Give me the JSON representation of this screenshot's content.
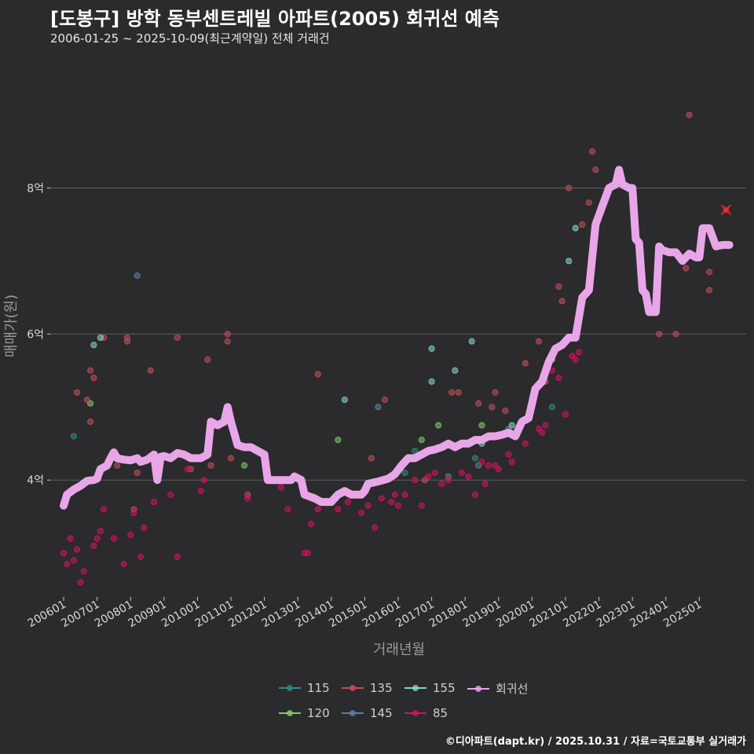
{
  "title": "[도봉구] 방학 동부센트레빌 아파트(2005) 회귀선 예측",
  "subtitle": "2006-01-25 ~ 2025-10-09(최근계약일) 전체 거래건",
  "footer": "©디아파트(dapt.kr) / 2025.10.31 / 자료=국토교통부 실거래가",
  "colors": {
    "background": "#2b2a2c",
    "grid": "#5e5d60",
    "regression": "#e8a6e8",
    "t115": "#2e8b87",
    "t120": "#7ccf6a",
    "t135": "#c0505a",
    "t145": "#5f7fa6",
    "t155": "#86d6cf",
    "t85": "#d6135f",
    "latest_marker": "#ff2a2a"
  },
  "chart_data": {
    "type": "scatter",
    "title": "[도봉구] 방학 동부센트레빌 아파트(2005) 회귀선 예측",
    "xlabel": "거래년월",
    "ylabel": "매매가(원)",
    "xlim": [
      2005.6,
      2026.4
    ],
    "ylim": [
      2.4,
      9.8
    ],
    "y_ticks": [
      4,
      6,
      8
    ],
    "y_tick_labels": [
      "4억",
      "6억",
      "8억"
    ],
    "x_ticks": [
      2006,
      2007,
      2008,
      2009,
      2010,
      2011,
      2012,
      2013,
      2014,
      2015,
      2016,
      2017,
      2018,
      2019,
      2020,
      2021,
      2022,
      2023,
      2024,
      2025
    ],
    "x_tick_labels": [
      "200601",
      "200701",
      "200801",
      "200901",
      "201001",
      "201101",
      "201201",
      "201301",
      "201401",
      "201501",
      "201601",
      "201701",
      "201801",
      "201901",
      "202001",
      "202101",
      "202201",
      "202301",
      "202401",
      "202501"
    ],
    "legend": [
      "115",
      "120",
      "135",
      "145",
      "155",
      "85",
      "회귀선"
    ],
    "legend_keys": [
      "t115",
      "t120",
      "t135",
      "t145",
      "t155",
      "t85",
      "regression"
    ],
    "legend_position": "bottom",
    "series": [
      {
        "name": "115",
        "key": "t115",
        "points": [
          [
            2006.3,
            4.6
          ],
          [
            2016.5,
            4.4
          ],
          [
            2016.2,
            4.1
          ],
          [
            2020.6,
            5.0
          ],
          [
            2018.3,
            4.3
          ]
        ]
      },
      {
        "name": "120",
        "key": "t120",
        "points": [
          [
            2006.8,
            5.05
          ],
          [
            2011.4,
            4.2
          ],
          [
            2014.2,
            4.55
          ],
          [
            2016.7,
            4.55
          ],
          [
            2017.2,
            4.75
          ],
          [
            2018.5,
            4.75
          ],
          [
            2020.4,
            5.5
          ],
          [
            2020.6,
            5.65
          ]
        ]
      },
      {
        "name": "135",
        "key": "t135",
        "points": [
          [
            2006.4,
            5.2
          ],
          [
            2006.7,
            5.1
          ],
          [
            2006.9,
            5.4
          ],
          [
            2006.8,
            5.5
          ],
          [
            2006.8,
            4.8
          ],
          [
            2007.2,
            5.95
          ],
          [
            2007.6,
            4.2
          ],
          [
            2007.9,
            5.9
          ],
          [
            2007.9,
            5.95
          ],
          [
            2008.1,
            3.6
          ],
          [
            2008.2,
            4.1
          ],
          [
            2008.6,
            5.5
          ],
          [
            2009.4,
            5.95
          ],
          [
            2009.8,
            4.15
          ],
          [
            2010.3,
            5.65
          ],
          [
            2010.4,
            4.2
          ],
          [
            2010.9,
            6.0
          ],
          [
            2010.9,
            5.9
          ],
          [
            2011.0,
            4.3
          ],
          [
            2011.5,
            3.8
          ],
          [
            2013.6,
            5.45
          ],
          [
            2015.2,
            4.3
          ],
          [
            2015.6,
            5.1
          ],
          [
            2016.8,
            4.0
          ],
          [
            2017.6,
            5.2
          ],
          [
            2017.8,
            5.2
          ],
          [
            2018.4,
            5.05
          ],
          [
            2018.8,
            5.0
          ],
          [
            2018.9,
            5.2
          ],
          [
            2019.2,
            4.95
          ],
          [
            2019.8,
            5.6
          ],
          [
            2020.2,
            5.9
          ],
          [
            2021.5,
            7.5
          ],
          [
            2021.7,
            7.8
          ],
          [
            2020.8,
            6.65
          ],
          [
            2020.9,
            6.45
          ],
          [
            2021.1,
            8.0
          ],
          [
            2021.8,
            8.5
          ],
          [
            2021.9,
            8.25
          ],
          [
            2023.8,
            6.0
          ],
          [
            2024.3,
            6.0
          ],
          [
            2024.7,
            9.0
          ],
          [
            2025.3,
            6.85
          ],
          [
            2025.3,
            6.6
          ],
          [
            2024.6,
            6.9
          ],
          [
            2020.4,
            5.35
          ]
        ]
      },
      {
        "name": "145",
        "key": "t145",
        "points": [
          [
            2008.2,
            6.8
          ],
          [
            2015.4,
            5.0
          ],
          [
            2017.5,
            4.05
          ],
          [
            2018.4,
            4.2
          ],
          [
            2019.3,
            4.7
          ]
        ]
      },
      {
        "name": "155",
        "key": "t155",
        "points": [
          [
            2006.9,
            5.85
          ],
          [
            2007.1,
            5.95
          ],
          [
            2014.4,
            5.1
          ],
          [
            2017.0,
            5.35
          ],
          [
            2017.0,
            5.8
          ],
          [
            2017.7,
            5.5
          ],
          [
            2018.2,
            5.9
          ],
          [
            2018.5,
            4.5
          ],
          [
            2019.4,
            4.75
          ],
          [
            2021.1,
            7.0
          ],
          [
            2021.3,
            7.45
          ]
        ]
      },
      {
        "name": "85",
        "key": "t85",
        "points": [
          [
            2006.0,
            3.0
          ],
          [
            2006.1,
            2.85
          ],
          [
            2006.2,
            3.2
          ],
          [
            2006.3,
            2.9
          ],
          [
            2006.4,
            3.05
          ],
          [
            2006.5,
            2.6
          ],
          [
            2006.6,
            2.75
          ],
          [
            2006.9,
            3.1
          ],
          [
            2007.0,
            3.2
          ],
          [
            2007.1,
            3.3
          ],
          [
            2007.2,
            3.6
          ],
          [
            2007.5,
            3.2
          ],
          [
            2007.8,
            2.85
          ],
          [
            2008.0,
            3.25
          ],
          [
            2008.1,
            3.55
          ],
          [
            2008.3,
            2.95
          ],
          [
            2008.4,
            3.35
          ],
          [
            2008.7,
            3.7
          ],
          [
            2009.2,
            3.8
          ],
          [
            2009.4,
            2.95
          ],
          [
            2009.7,
            4.15
          ],
          [
            2010.1,
            3.85
          ],
          [
            2010.2,
            4.0
          ],
          [
            2011.5,
            3.75
          ],
          [
            2012.5,
            3.9
          ],
          [
            2012.7,
            3.6
          ],
          [
            2013.2,
            3.0
          ],
          [
            2013.3,
            3.0
          ],
          [
            2013.4,
            3.4
          ],
          [
            2013.6,
            3.6
          ],
          [
            2014.2,
            3.6
          ],
          [
            2014.5,
            3.7
          ],
          [
            2014.7,
            3.8
          ],
          [
            2014.9,
            3.55
          ],
          [
            2015.1,
            3.65
          ],
          [
            2015.3,
            3.35
          ],
          [
            2015.5,
            3.75
          ],
          [
            2015.8,
            3.7
          ],
          [
            2015.9,
            3.8
          ],
          [
            2016.0,
            3.65
          ],
          [
            2016.2,
            3.8
          ],
          [
            2016.5,
            4.0
          ],
          [
            2016.7,
            3.65
          ],
          [
            2016.9,
            4.05
          ],
          [
            2017.1,
            4.1
          ],
          [
            2017.3,
            3.95
          ],
          [
            2017.5,
            4.0
          ],
          [
            2017.9,
            4.1
          ],
          [
            2018.1,
            4.05
          ],
          [
            2018.3,
            3.8
          ],
          [
            2018.5,
            4.25
          ],
          [
            2018.6,
            3.95
          ],
          [
            2018.7,
            4.2
          ],
          [
            2018.9,
            4.2
          ],
          [
            2019.0,
            4.15
          ],
          [
            2019.3,
            4.35
          ],
          [
            2019.4,
            4.25
          ],
          [
            2019.8,
            4.5
          ],
          [
            2020.0,
            5.0
          ],
          [
            2020.2,
            4.7
          ],
          [
            2020.3,
            4.65
          ],
          [
            2020.4,
            4.75
          ],
          [
            2020.6,
            5.5
          ],
          [
            2020.8,
            5.4
          ],
          [
            2021.0,
            4.9
          ],
          [
            2021.2,
            5.7
          ],
          [
            2021.3,
            5.65
          ],
          [
            2021.4,
            5.75
          ]
        ]
      }
    ],
    "regression": [
      [
        2006.0,
        3.65
      ],
      [
        2006.1,
        3.8
      ],
      [
        2006.3,
        3.87
      ],
      [
        2006.5,
        3.92
      ],
      [
        2006.7,
        3.99
      ],
      [
        2006.9,
        4.0
      ],
      [
        2007.0,
        4.02
      ],
      [
        2007.1,
        4.15
      ],
      [
        2007.3,
        4.2
      ],
      [
        2007.4,
        4.3
      ],
      [
        2007.5,
        4.38
      ],
      [
        2007.6,
        4.3
      ],
      [
        2007.8,
        4.28
      ],
      [
        2008.0,
        4.27
      ],
      [
        2008.2,
        4.3
      ],
      [
        2008.3,
        4.25
      ],
      [
        2008.5,
        4.28
      ],
      [
        2008.7,
        4.35
      ],
      [
        2008.8,
        4.0
      ],
      [
        2008.9,
        4.32
      ],
      [
        2009.0,
        4.33
      ],
      [
        2009.2,
        4.3
      ],
      [
        2009.4,
        4.37
      ],
      [
        2009.6,
        4.35
      ],
      [
        2009.8,
        4.3
      ],
      [
        2010.1,
        4.3
      ],
      [
        2010.3,
        4.35
      ],
      [
        2010.4,
        4.8
      ],
      [
        2010.6,
        4.75
      ],
      [
        2010.8,
        4.8
      ],
      [
        2010.9,
        5.0
      ],
      [
        2011.0,
        4.8
      ],
      [
        2011.2,
        4.48
      ],
      [
        2011.4,
        4.45
      ],
      [
        2011.6,
        4.45
      ],
      [
        2011.8,
        4.4
      ],
      [
        2012.0,
        4.35
      ],
      [
        2012.1,
        4.0
      ],
      [
        2012.3,
        4.0
      ],
      [
        2012.6,
        4.0
      ],
      [
        2012.8,
        4.0
      ],
      [
        2012.9,
        4.05
      ],
      [
        2013.1,
        4.0
      ],
      [
        2013.2,
        3.8
      ],
      [
        2013.5,
        3.75
      ],
      [
        2013.7,
        3.7
      ],
      [
        2014.0,
        3.7
      ],
      [
        2014.2,
        3.8
      ],
      [
        2014.4,
        3.85
      ],
      [
        2014.6,
        3.8
      ],
      [
        2014.9,
        3.8
      ],
      [
        2015.0,
        3.85
      ],
      [
        2015.1,
        3.95
      ],
      [
        2015.4,
        3.98
      ],
      [
        2015.7,
        4.02
      ],
      [
        2015.9,
        4.08
      ],
      [
        2016.1,
        4.2
      ],
      [
        2016.3,
        4.3
      ],
      [
        2016.5,
        4.3
      ],
      [
        2016.7,
        4.35
      ],
      [
        2016.9,
        4.4
      ],
      [
        2017.1,
        4.42
      ],
      [
        2017.3,
        4.45
      ],
      [
        2017.5,
        4.5
      ],
      [
        2017.7,
        4.45
      ],
      [
        2017.9,
        4.5
      ],
      [
        2018.1,
        4.5
      ],
      [
        2018.3,
        4.55
      ],
      [
        2018.5,
        4.55
      ],
      [
        2018.7,
        4.6
      ],
      [
        2018.9,
        4.6
      ],
      [
        2019.1,
        4.62
      ],
      [
        2019.3,
        4.65
      ],
      [
        2019.5,
        4.6
      ],
      [
        2019.7,
        4.8
      ],
      [
        2019.9,
        4.85
      ],
      [
        2020.1,
        5.25
      ],
      [
        2020.3,
        5.35
      ],
      [
        2020.5,
        5.62
      ],
      [
        2020.7,
        5.8
      ],
      [
        2020.9,
        5.85
      ],
      [
        2021.1,
        5.95
      ],
      [
        2021.3,
        5.95
      ],
      [
        2021.5,
        6.5
      ],
      [
        2021.7,
        6.6
      ],
      [
        2021.9,
        7.5
      ],
      [
        2022.1,
        7.75
      ],
      [
        2022.3,
        8.0
      ],
      [
        2022.5,
        8.05
      ],
      [
        2022.6,
        8.25
      ],
      [
        2022.7,
        8.05
      ],
      [
        2022.9,
        8.0
      ],
      [
        2023.0,
        8.0
      ],
      [
        2023.1,
        7.3
      ],
      [
        2023.2,
        7.25
      ],
      [
        2023.3,
        6.6
      ],
      [
        2023.4,
        6.55
      ],
      [
        2023.5,
        6.3
      ],
      [
        2023.7,
        6.3
      ],
      [
        2023.8,
        7.2
      ],
      [
        2023.9,
        7.15
      ],
      [
        2024.1,
        7.12
      ],
      [
        2024.3,
        7.12
      ],
      [
        2024.5,
        7.0
      ],
      [
        2024.7,
        7.1
      ],
      [
        2024.9,
        7.05
      ],
      [
        2025.0,
        7.05
      ],
      [
        2025.1,
        7.45
      ],
      [
        2025.3,
        7.45
      ],
      [
        2025.5,
        7.2
      ],
      [
        2025.7,
        7.22
      ],
      [
        2025.9,
        7.22
      ]
    ],
    "latest_point": [
      2025.8,
      7.7
    ]
  }
}
